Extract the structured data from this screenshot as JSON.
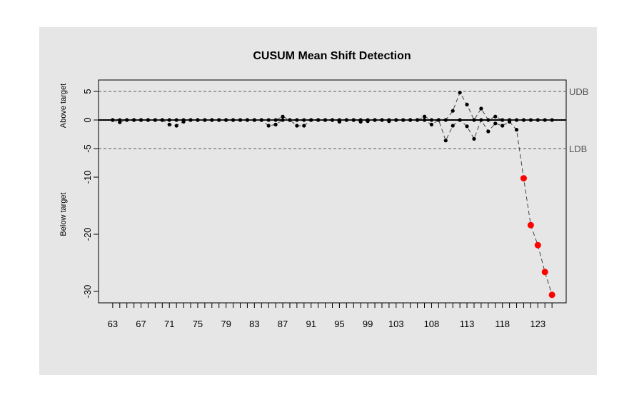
{
  "chart_data": {
    "type": "cusum",
    "title": "CUSUM Mean Shift Detection",
    "ylabel_upper": "Above target",
    "ylabel_lower": "Below target",
    "x": [
      63,
      64,
      65,
      66,
      67,
      68,
      69,
      70,
      71,
      72,
      73,
      74,
      75,
      76,
      77,
      78,
      79,
      80,
      81,
      82,
      83,
      84,
      85,
      86,
      87,
      88,
      89,
      90,
      91,
      92,
      93,
      94,
      95,
      96,
      97,
      98,
      99,
      100,
      101,
      102,
      103,
      104,
      105,
      106,
      107,
      108,
      109,
      110,
      111,
      112,
      113,
      114,
      115,
      116,
      117,
      118,
      119,
      120,
      121,
      122,
      123,
      124,
      125
    ],
    "series": [
      {
        "name": "Above target",
        "color": "#000000",
        "values": [
          0,
          0,
          0,
          0,
          0,
          0,
          0,
          0,
          0,
          0,
          0,
          0,
          0,
          0,
          0,
          0,
          0,
          0,
          0,
          0,
          0,
          0,
          0,
          0,
          0.6,
          0,
          0,
          0,
          0,
          0,
          0,
          0,
          0,
          0,
          0,
          0,
          0,
          0,
          0,
          0,
          0,
          0,
          0,
          0,
          0.6,
          0,
          0,
          0,
          1.6,
          4.8,
          2.7,
          0,
          2.0,
          0,
          0.6,
          0,
          0,
          0,
          0,
          0,
          0,
          0,
          0
        ]
      },
      {
        "name": "Below target",
        "color": "#000000",
        "values": [
          0,
          -0.4,
          0,
          0,
          0,
          0,
          0,
          0,
          -0.8,
          -1.0,
          -0.3,
          0,
          0,
          0,
          0,
          0,
          0,
          0,
          0,
          0,
          0,
          0,
          -1.0,
          -0.8,
          0,
          0,
          -1.0,
          -1.0,
          0,
          0,
          0,
          0,
          -0.3,
          0,
          0,
          -0.3,
          -0.2,
          0,
          0,
          -0.2,
          0,
          0,
          0,
          0,
          0,
          -0.8,
          0,
          -3.6,
          -1.0,
          0,
          -1.1,
          -3.3,
          0,
          -2.0,
          -0.6,
          -1.0,
          -0.3,
          -1.7,
          -10.2,
          -18.4,
          -21.9,
          -26.6,
          -30.6
        ]
      }
    ],
    "violation_color": "#ff0000",
    "center": 0,
    "upper_bound": {
      "value": 5,
      "label": "UDB"
    },
    "lower_bound": {
      "value": -5,
      "label": "LDB"
    },
    "xlim": [
      61,
      127
    ],
    "ylim": [
      -32,
      7
    ],
    "xticks": [
      63,
      67,
      71,
      75,
      79,
      83,
      87,
      91,
      95,
      99,
      103,
      108,
      113,
      118,
      123
    ],
    "yticks": [
      5,
      0,
      -5,
      -10,
      -20,
      -30
    ]
  }
}
